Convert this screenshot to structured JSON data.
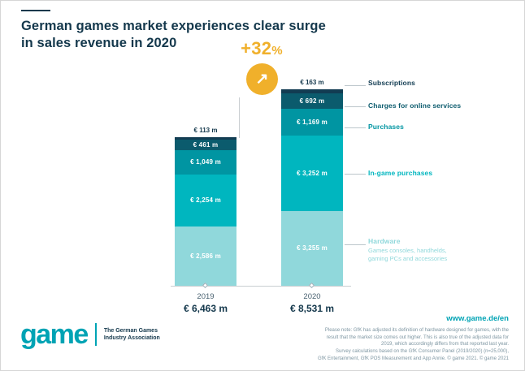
{
  "title": "German games market experiences clear surge\nin sales revenue in 2020",
  "growth": {
    "value": "+32",
    "unit": "%",
    "arrow": "↗",
    "color": "#f0b02b"
  },
  "chart_data": {
    "type": "bar",
    "stacked": true,
    "title": "German games market experiences clear surge in sales revenue in 2020",
    "unit": "€ million",
    "categories": [
      "2019",
      "2020"
    ],
    "category_totals": [
      "€ 6,463 m",
      "€ 8,531 m"
    ],
    "growth_annotation": "+32%",
    "legend_position": "right",
    "series": [
      {
        "name": "Subscriptions",
        "color": "#123c52",
        "values": [
          113,
          163
        ],
        "value_labels": [
          "€ 113 m",
          "€ 163 m"
        ]
      },
      {
        "name": "Charges for online services",
        "color": "#0b5b6d",
        "values": [
          461,
          692
        ],
        "value_labels": [
          "€ 461 m",
          "€ 692 m"
        ]
      },
      {
        "name": "Purchases",
        "color": "#0095a2",
        "values": [
          1049,
          1169
        ],
        "value_labels": [
          "€ 1,049 m",
          "€ 1,169 m"
        ]
      },
      {
        "name": "In-game purchases",
        "color": "#00b6bf",
        "values": [
          2254,
          3252
        ],
        "value_labels": [
          "€ 2,254 m",
          "€ 3,252 m"
        ]
      },
      {
        "name": "Hardware",
        "sublabel": "Games consoles, handhelds,\ngaming PCs and accessories",
        "color": "#90d8db",
        "values": [
          2586,
          3255
        ],
        "value_labels": [
          "€ 2,586 m",
          "€ 3,255 m"
        ]
      }
    ]
  },
  "logo": {
    "wordmark": "game",
    "tagline": "The German Games\nIndustry Association"
  },
  "footer": {
    "url": "www.game.de/en",
    "note": "Please note: GfK has adjusted its definition of hardware designed for games, with the\nresult that the market size comes out higher. This is also true of the adjusted data for\n2019, which accordingly differs from that reported last year.\nSurvey calculations based on the GfK Consumer Panel (2019/2020) (n=25,000),\nGfK Entertainment, GfK POS Measurement and App Annie. © game 2021. © game 2021"
  }
}
